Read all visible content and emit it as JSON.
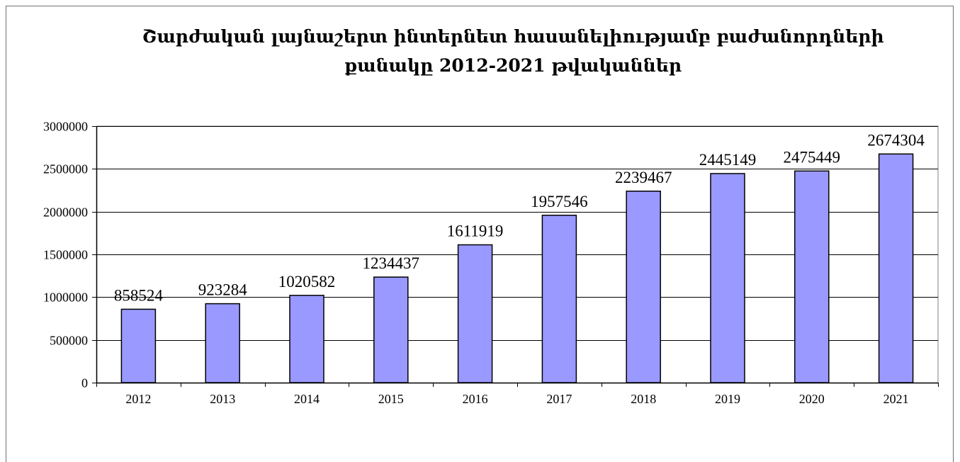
{
  "chart_data": {
    "type": "bar",
    "title_lines": [
      "Շարժական լայնաշերտ ինտերնետ հասանելիությամբ բաժանորդների",
      "քանակը 2012-2021 թվականներ"
    ],
    "xlabel": "",
    "ylabel": "",
    "categories": [
      "2012",
      "2013",
      "2014",
      "2015",
      "2016",
      "2017",
      "2018",
      "2019",
      "2020",
      "2021"
    ],
    "values": [
      858524,
      923284,
      1020582,
      1234437,
      1611919,
      1957546,
      2239467,
      2445149,
      2475449,
      2674304
    ],
    "data_labels": [
      "858524",
      "923284",
      "1020582",
      "1234437",
      "1611919",
      "1957546",
      "2239467",
      "2445149",
      "2475449",
      "2674304"
    ],
    "ylim": [
      0,
      3000000
    ],
    "y_ticks": [
      0,
      500000,
      1000000,
      1500000,
      2000000,
      2500000,
      3000000
    ],
    "y_tick_labels": [
      "0",
      "500000",
      "1000000",
      "1500000",
      "2000000",
      "2500000",
      "3000000"
    ],
    "grid": true,
    "legend": "none",
    "colors": {
      "bar_fill": "#9999ff",
      "bar_stroke": "#000000",
      "gridline": "#000000",
      "axis": "#000000",
      "plot_border": "#808080",
      "frame_border": "#6f6f6f"
    }
  }
}
